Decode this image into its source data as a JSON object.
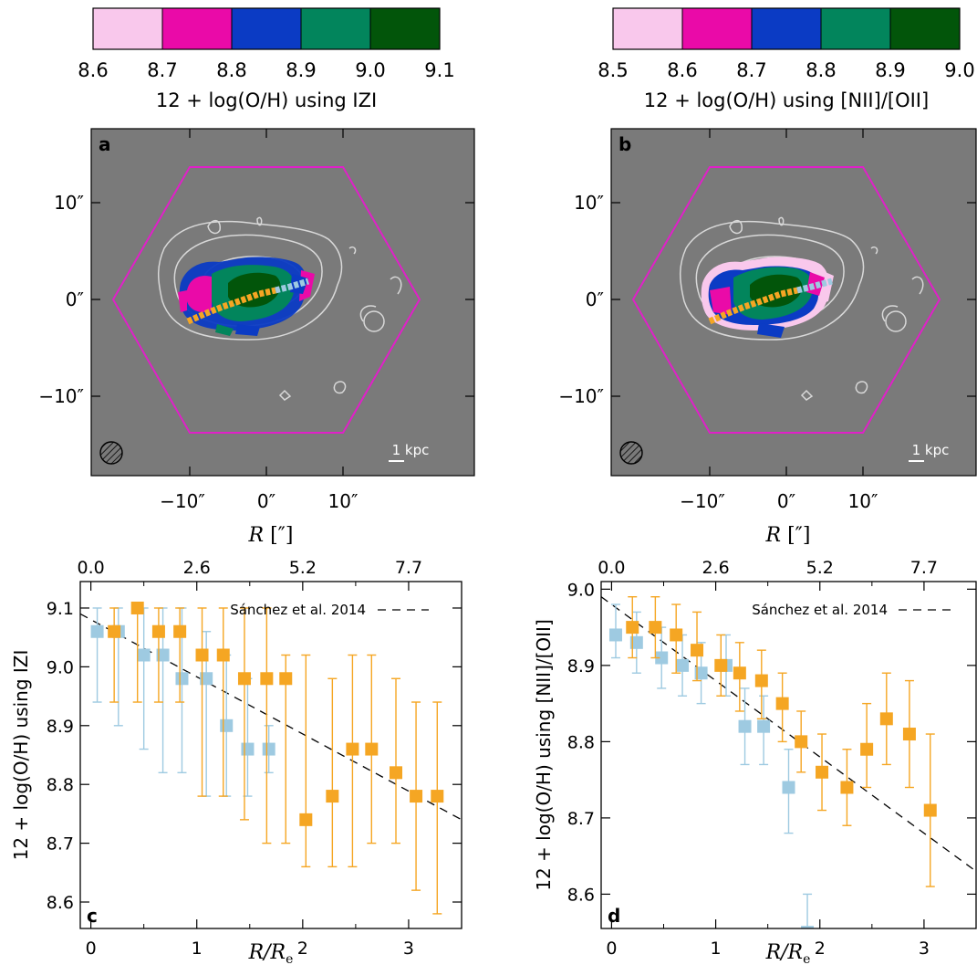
{
  "colors": {
    "map_bg": "#7a7a7a",
    "hexagon": "#e020c8",
    "contour": "#d8d8d8",
    "orange_series": "#f5a623",
    "blue_series": "#9ecae1",
    "reference_line": "#000000"
  },
  "colorbars": [
    {
      "label": "12 + log(O/H) using IZI",
      "ticks": [
        "8.6",
        "8.7",
        "8.8",
        "8.9",
        "9.0",
        "9.1"
      ],
      "segments": [
        "#f9c8ec",
        "#ea0aa8",
        "#0b3bc4",
        "#02855c",
        "#02550a"
      ]
    },
    {
      "label": "12 + log(O/H) using [NII]/[OII]",
      "ticks": [
        "8.5",
        "8.6",
        "8.7",
        "8.8",
        "8.9",
        "9.0"
      ],
      "segments": [
        "#f9c8ec",
        "#ea0aa8",
        "#0b3bc4",
        "#02855c",
        "#02550a"
      ]
    }
  ],
  "maps": [
    {
      "panel": "a",
      "xticks": [
        "−10″",
        "0″",
        "10″"
      ],
      "yticks": [
        "10″",
        "0″",
        "−10″"
      ],
      "scalebar": "1 kpc"
    },
    {
      "panel": "b",
      "xticks": [
        "−10″",
        "0″",
        "10″"
      ],
      "yticks": [
        "10″",
        "0″",
        "−10″"
      ],
      "scalebar": "1 kpc"
    }
  ],
  "chart_data": [
    {
      "panel": "c",
      "type": "scatter",
      "xlabel": "R/R_e",
      "ylabel": "12 + log(O/H) using IZI",
      "top_xlabel": "R [″]",
      "top_xticks": [
        "0.0",
        "2.6",
        "5.2",
        "7.7"
      ],
      "xticks": [
        "0",
        "1",
        "2",
        "3"
      ],
      "yticks": [
        "8.6",
        "8.7",
        "8.8",
        "8.9",
        "9.0",
        "9.1"
      ],
      "xlim": [
        -0.1,
        3.5
      ],
      "ylim": [
        8.555,
        9.145
      ],
      "reference_line": {
        "label": "Sánchez et al. 2014",
        "x": [
          -0.1,
          3.5
        ],
        "y": [
          9.09,
          8.74
        ]
      },
      "series": [
        {
          "color": "orange",
          "x": [
            0.22,
            0.44,
            0.64,
            0.84,
            1.05,
            1.25,
            1.45,
            1.66,
            1.84,
            2.03,
            2.28,
            2.47,
            2.65,
            2.88,
            3.07,
            3.27
          ],
          "y": [
            9.06,
            9.1,
            9.06,
            9.06,
            9.02,
            9.02,
            8.98,
            8.98,
            8.98,
            8.74,
            8.78,
            8.86,
            8.86,
            8.82,
            8.78,
            8.78
          ],
          "err_low": [
            8.94,
            8.94,
            8.94,
            8.94,
            8.78,
            8.78,
            8.74,
            8.7,
            8.7,
            8.66,
            8.66,
            8.66,
            8.7,
            8.7,
            8.62,
            8.58
          ],
          "err_high": [
            9.1,
            9.1,
            9.1,
            9.1,
            9.1,
            9.1,
            9.1,
            9.1,
            9.02,
            9.02,
            8.98,
            9.02,
            9.02,
            8.98,
            8.94,
            8.94
          ]
        },
        {
          "color": "blue",
          "x": [
            0.06,
            0.26,
            0.5,
            0.68,
            0.86,
            1.09,
            1.28,
            1.48,
            1.68
          ],
          "y": [
            9.06,
            9.06,
            9.02,
            9.02,
            8.98,
            8.98,
            8.9,
            8.86,
            8.86
          ],
          "err_low": [
            8.94,
            8.9,
            8.86,
            8.82,
            8.82,
            8.78,
            8.78,
            8.78,
            8.82
          ],
          "err_high": [
            9.1,
            9.1,
            9.1,
            9.1,
            9.1,
            9.06,
            9.02,
            8.98,
            8.9
          ]
        }
      ]
    },
    {
      "panel": "d",
      "type": "scatter",
      "xlabel": "R/R_e",
      "ylabel": "12 + log(O/H) using [NII]/[OII]",
      "top_xlabel": "R [″]",
      "top_xticks": [
        "0.0",
        "2.6",
        "5.2",
        "7.7"
      ],
      "xticks": [
        "0",
        "1",
        "2",
        "3"
      ],
      "yticks": [
        "8.6",
        "8.7",
        "8.8",
        "8.9",
        "9.0"
      ],
      "xlim": [
        -0.1,
        3.5
      ],
      "ylim": [
        8.555,
        9.01
      ],
      "reference_line": {
        "label": "Sánchez et al. 2014",
        "x": [
          -0.1,
          3.5
        ],
        "y": [
          8.99,
          8.63
        ]
      },
      "series": [
        {
          "color": "orange",
          "x": [
            0.2,
            0.42,
            0.62,
            0.82,
            1.05,
            1.23,
            1.44,
            1.64,
            1.82,
            2.02,
            2.26,
            2.45,
            2.64,
            2.86,
            3.06
          ],
          "y": [
            8.95,
            8.95,
            8.94,
            8.92,
            8.9,
            8.89,
            8.88,
            8.85,
            8.8,
            8.76,
            8.74,
            8.79,
            8.83,
            8.81,
            8.71
          ],
          "err_low": [
            8.91,
            8.91,
            8.89,
            8.88,
            8.86,
            8.84,
            8.83,
            8.8,
            8.76,
            8.71,
            8.69,
            8.74,
            8.77,
            8.74,
            8.61
          ],
          "err_high": [
            8.99,
            8.99,
            8.98,
            8.97,
            8.94,
            8.93,
            8.92,
            8.89,
            8.84,
            8.81,
            8.79,
            8.85,
            8.89,
            8.88,
            8.81
          ]
        },
        {
          "color": "blue",
          "x": [
            0.04,
            0.24,
            0.48,
            0.68,
            0.86,
            1.1,
            1.28,
            1.46,
            1.7,
            1.88
          ],
          "y": [
            8.94,
            8.93,
            8.91,
            8.9,
            8.89,
            8.9,
            8.82,
            8.82,
            8.74,
            8.55
          ],
          "err_low": [
            8.91,
            8.89,
            8.87,
            8.86,
            8.85,
            8.86,
            8.77,
            8.77,
            8.68,
            8.49
          ],
          "err_high": [
            8.98,
            8.97,
            8.95,
            8.94,
            8.93,
            8.94,
            8.87,
            8.86,
            8.79,
            8.6
          ]
        }
      ]
    }
  ]
}
